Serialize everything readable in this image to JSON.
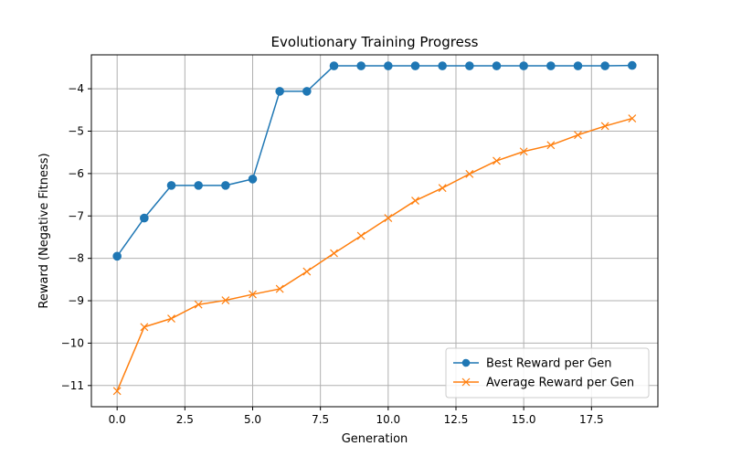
{
  "chart_data": {
    "type": "line",
    "title": "Evolutionary Training Progress",
    "xlabel": "Generation",
    "ylabel": "Reward (Negative Fitness)",
    "xlim": [
      -0.95,
      19.95
    ],
    "ylim": [
      -11.5,
      -3.2
    ],
    "xticks": [
      0,
      2.5,
      5,
      7.5,
      10,
      12.5,
      15,
      17.5
    ],
    "xtick_labels": [
      "0.0",
      "2.5",
      "5.0",
      "7.5",
      "10.0",
      "12.5",
      "15.0",
      "17.5"
    ],
    "yticks": [
      -11,
      -10,
      -9,
      -8,
      -7,
      -6,
      -5,
      -4
    ],
    "ytick_labels": [
      "−11",
      "−10",
      "−9",
      "−8",
      "−7",
      "−6",
      "−5",
      "−4"
    ],
    "grid": true,
    "legend_position": "lower-right",
    "x": [
      0,
      1,
      2,
      3,
      4,
      5,
      6,
      7,
      8,
      9,
      10,
      11,
      12,
      13,
      14,
      15,
      16,
      17,
      18,
      19
    ],
    "series": [
      {
        "name": "Best Reward per Gen",
        "color": "#1f77b4",
        "marker": "circle",
        "values": [
          -7.95,
          -7.05,
          -6.28,
          -6.28,
          -6.28,
          -6.13,
          -4.06,
          -4.06,
          -3.46,
          -3.46,
          -3.46,
          -3.46,
          -3.46,
          -3.46,
          -3.46,
          -3.46,
          -3.46,
          -3.46,
          -3.46,
          -3.45
        ]
      },
      {
        "name": "Average Reward per Gen",
        "color": "#ff7f0e",
        "marker": "x",
        "values": [
          -11.13,
          -9.62,
          -9.42,
          -9.09,
          -8.99,
          -8.85,
          -8.72,
          -8.31,
          -7.88,
          -7.47,
          -7.05,
          -6.64,
          -6.34,
          -6.01,
          -5.7,
          -5.48,
          -5.33,
          -5.09,
          -4.88,
          -4.7
        ]
      }
    ]
  }
}
